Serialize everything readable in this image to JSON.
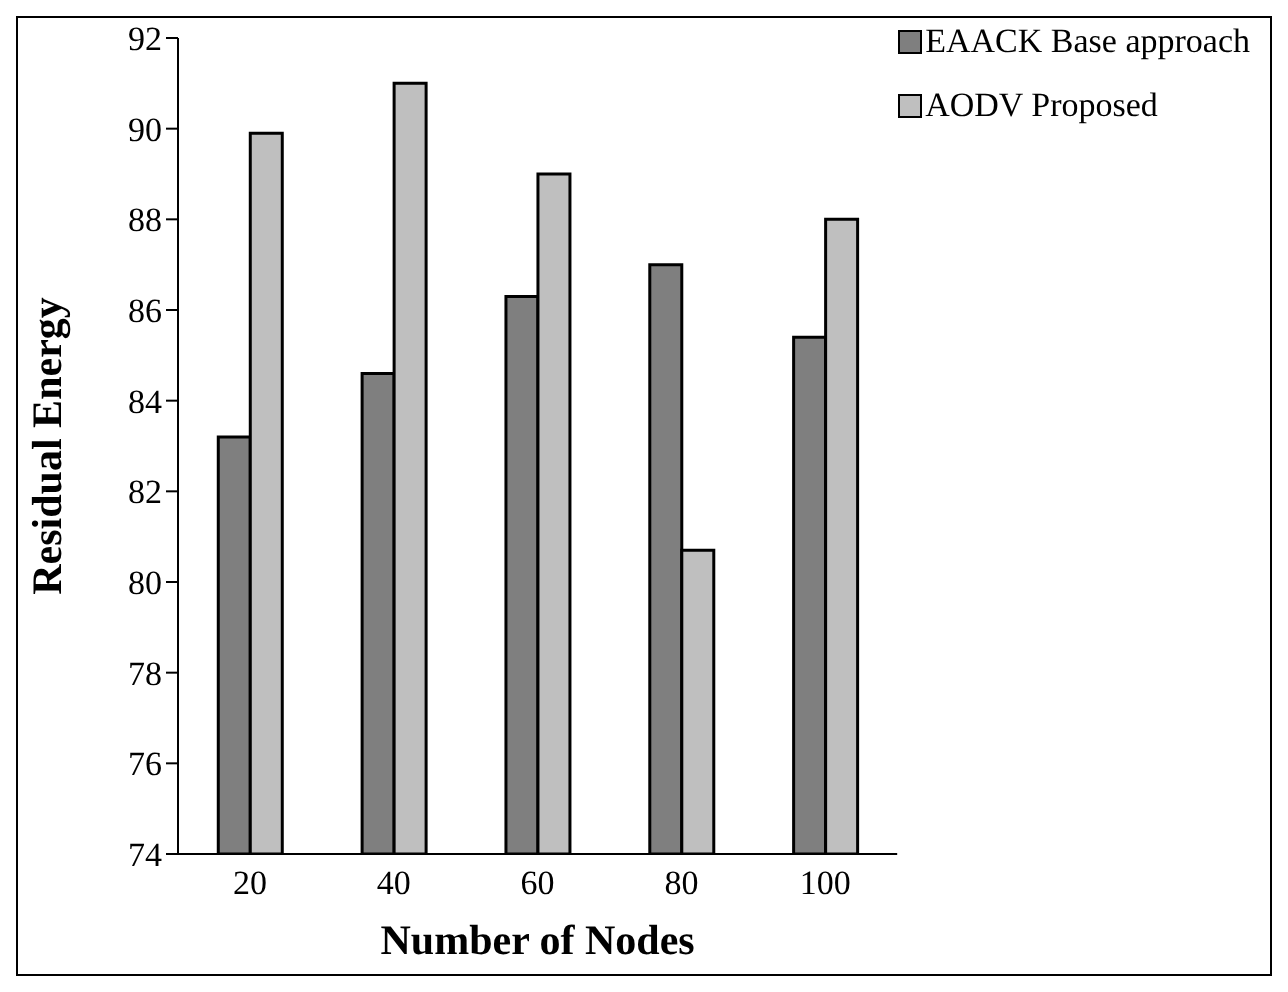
{
  "chart_data": {
    "type": "bar",
    "xlabel": "Number of Nodes",
    "ylabel": "Residual Energy",
    "categories": [
      "20",
      "40",
      "60",
      "80",
      "100"
    ],
    "series": [
      {
        "name": "EAACK Base approach",
        "color": "#7f7f7f",
        "values": [
          83.2,
          84.6,
          86.3,
          87.0,
          85.4
        ]
      },
      {
        "name": "AODV Proposed",
        "color": "#bfbfbf",
        "values": [
          89.9,
          91.0,
          89.0,
          80.7,
          88.0
        ]
      }
    ],
    "ylim": [
      74,
      92
    ],
    "yticks": [
      74,
      76,
      78,
      80,
      82,
      84,
      86,
      88,
      90,
      92
    ],
    "grid": false,
    "legend": "top right"
  }
}
